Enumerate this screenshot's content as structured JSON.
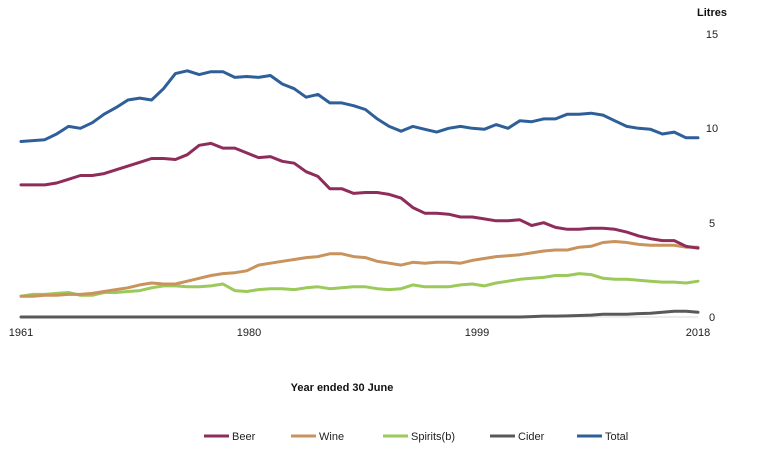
{
  "chart_data": {
    "type": "line",
    "title": "",
    "xlabel": "Year ended 30 June",
    "ylabel": "Litres",
    "x_ticks": [
      "1961",
      "1980",
      "1999",
      "2018"
    ],
    "y_ticks": [
      "15",
      "10",
      "5",
      "0"
    ],
    "ylim": [
      0,
      15
    ],
    "xlim": [
      1961,
      2018
    ],
    "grid": false,
    "legend_position": "bottom",
    "x": [
      1961,
      1962,
      1963,
      1964,
      1965,
      1966,
      1967,
      1968,
      1969,
      1970,
      1971,
      1972,
      1973,
      1974,
      1975,
      1976,
      1977,
      1978,
      1979,
      1980,
      1981,
      1982,
      1983,
      1984,
      1985,
      1986,
      1987,
      1988,
      1989,
      1990,
      1991,
      1992,
      1993,
      1994,
      1995,
      1996,
      1997,
      1998,
      1999,
      2000,
      2001,
      2002,
      2003,
      2004,
      2005,
      2006,
      2007,
      2008,
      2009,
      2010,
      2011,
      2012,
      2013,
      2014,
      2015,
      2016,
      2017,
      2018
    ],
    "series": [
      {
        "name": "Beer",
        "color": "#8e2c5b",
        "values": [
          7.0,
          7.0,
          7.0,
          7.1,
          7.3,
          7.5,
          7.5,
          7.6,
          7.8,
          8.0,
          8.2,
          8.4,
          8.4,
          8.35,
          8.6,
          9.1,
          9.2,
          8.95,
          8.95,
          8.7,
          8.45,
          8.5,
          8.25,
          8.15,
          7.7,
          7.45,
          6.8,
          6.8,
          6.55,
          6.6,
          6.6,
          6.5,
          6.3,
          5.8,
          5.5,
          5.5,
          5.45,
          5.3,
          5.3,
          5.2,
          5.1,
          5.1,
          5.15,
          4.85,
          5.0,
          4.75,
          4.65,
          4.65,
          4.7,
          4.7,
          4.65,
          4.5,
          4.3,
          4.15,
          4.05,
          4.05,
          3.75,
          3.65
        ]
      },
      {
        "name": "Wine",
        "color": "#c8935c",
        "values": [
          1.1,
          1.1,
          1.15,
          1.15,
          1.2,
          1.2,
          1.25,
          1.35,
          1.45,
          1.55,
          1.7,
          1.8,
          1.75,
          1.75,
          1.9,
          2.05,
          2.2,
          2.3,
          2.35,
          2.45,
          2.75,
          2.85,
          2.95,
          3.05,
          3.15,
          3.2,
          3.35,
          3.35,
          3.2,
          3.15,
          2.95,
          2.85,
          2.75,
          2.9,
          2.85,
          2.9,
          2.9,
          2.85,
          3.0,
          3.1,
          3.2,
          3.25,
          3.3,
          3.4,
          3.5,
          3.55,
          3.55,
          3.7,
          3.75,
          3.95,
          4.0,
          3.95,
          3.85,
          3.8,
          3.8,
          3.8,
          3.7,
          3.7
        ]
      },
      {
        "name": "Spirits(b)",
        "color": "#9bc95a",
        "values": [
          1.1,
          1.2,
          1.2,
          1.25,
          1.3,
          1.15,
          1.15,
          1.3,
          1.3,
          1.35,
          1.4,
          1.55,
          1.65,
          1.65,
          1.6,
          1.6,
          1.65,
          1.75,
          1.4,
          1.35,
          1.45,
          1.5,
          1.5,
          1.45,
          1.55,
          1.6,
          1.5,
          1.55,
          1.6,
          1.6,
          1.5,
          1.45,
          1.5,
          1.7,
          1.6,
          1.6,
          1.6,
          1.7,
          1.75,
          1.65,
          1.8,
          1.9,
          2.0,
          2.05,
          2.1,
          2.2,
          2.2,
          2.3,
          2.25,
          2.05,
          2.0,
          2.0,
          1.95,
          1.9,
          1.85,
          1.85,
          1.8,
          1.9
        ]
      },
      {
        "name": "Cider",
        "color": "#595959",
        "values": [
          0,
          0,
          0,
          0,
          0,
          0,
          0,
          0,
          0,
          0,
          0,
          0,
          0,
          0,
          0,
          0,
          0,
          0,
          0,
          0,
          0,
          0,
          0,
          0,
          0,
          0,
          0,
          0,
          0,
          0,
          0,
          0,
          0,
          0,
          0,
          0,
          0,
          0,
          0,
          0,
          0,
          0,
          0,
          0.02,
          0.05,
          0.05,
          0.06,
          0.08,
          0.1,
          0.15,
          0.15,
          0.15,
          0.18,
          0.2,
          0.25,
          0.3,
          0.3,
          0.25
        ]
      },
      {
        "name": "Total",
        "color": "#2e5f99",
        "values": [
          9.3,
          9.35,
          9.4,
          9.7,
          10.1,
          10.0,
          10.3,
          10.75,
          11.1,
          11.5,
          11.6,
          11.5,
          12.1,
          12.9,
          13.05,
          12.85,
          13.0,
          13.0,
          12.7,
          12.75,
          12.7,
          12.8,
          12.35,
          12.1,
          11.65,
          11.8,
          11.35,
          11.35,
          11.2,
          11.0,
          10.5,
          10.1,
          9.85,
          10.1,
          9.95,
          9.8,
          10.0,
          10.1,
          10.0,
          9.95,
          10.2,
          10.0,
          10.4,
          10.35,
          10.5,
          10.5,
          10.75,
          10.75,
          10.8,
          10.7,
          10.4,
          10.1,
          10.0,
          9.95,
          9.7,
          9.8,
          9.5,
          9.5
        ]
      }
    ]
  }
}
